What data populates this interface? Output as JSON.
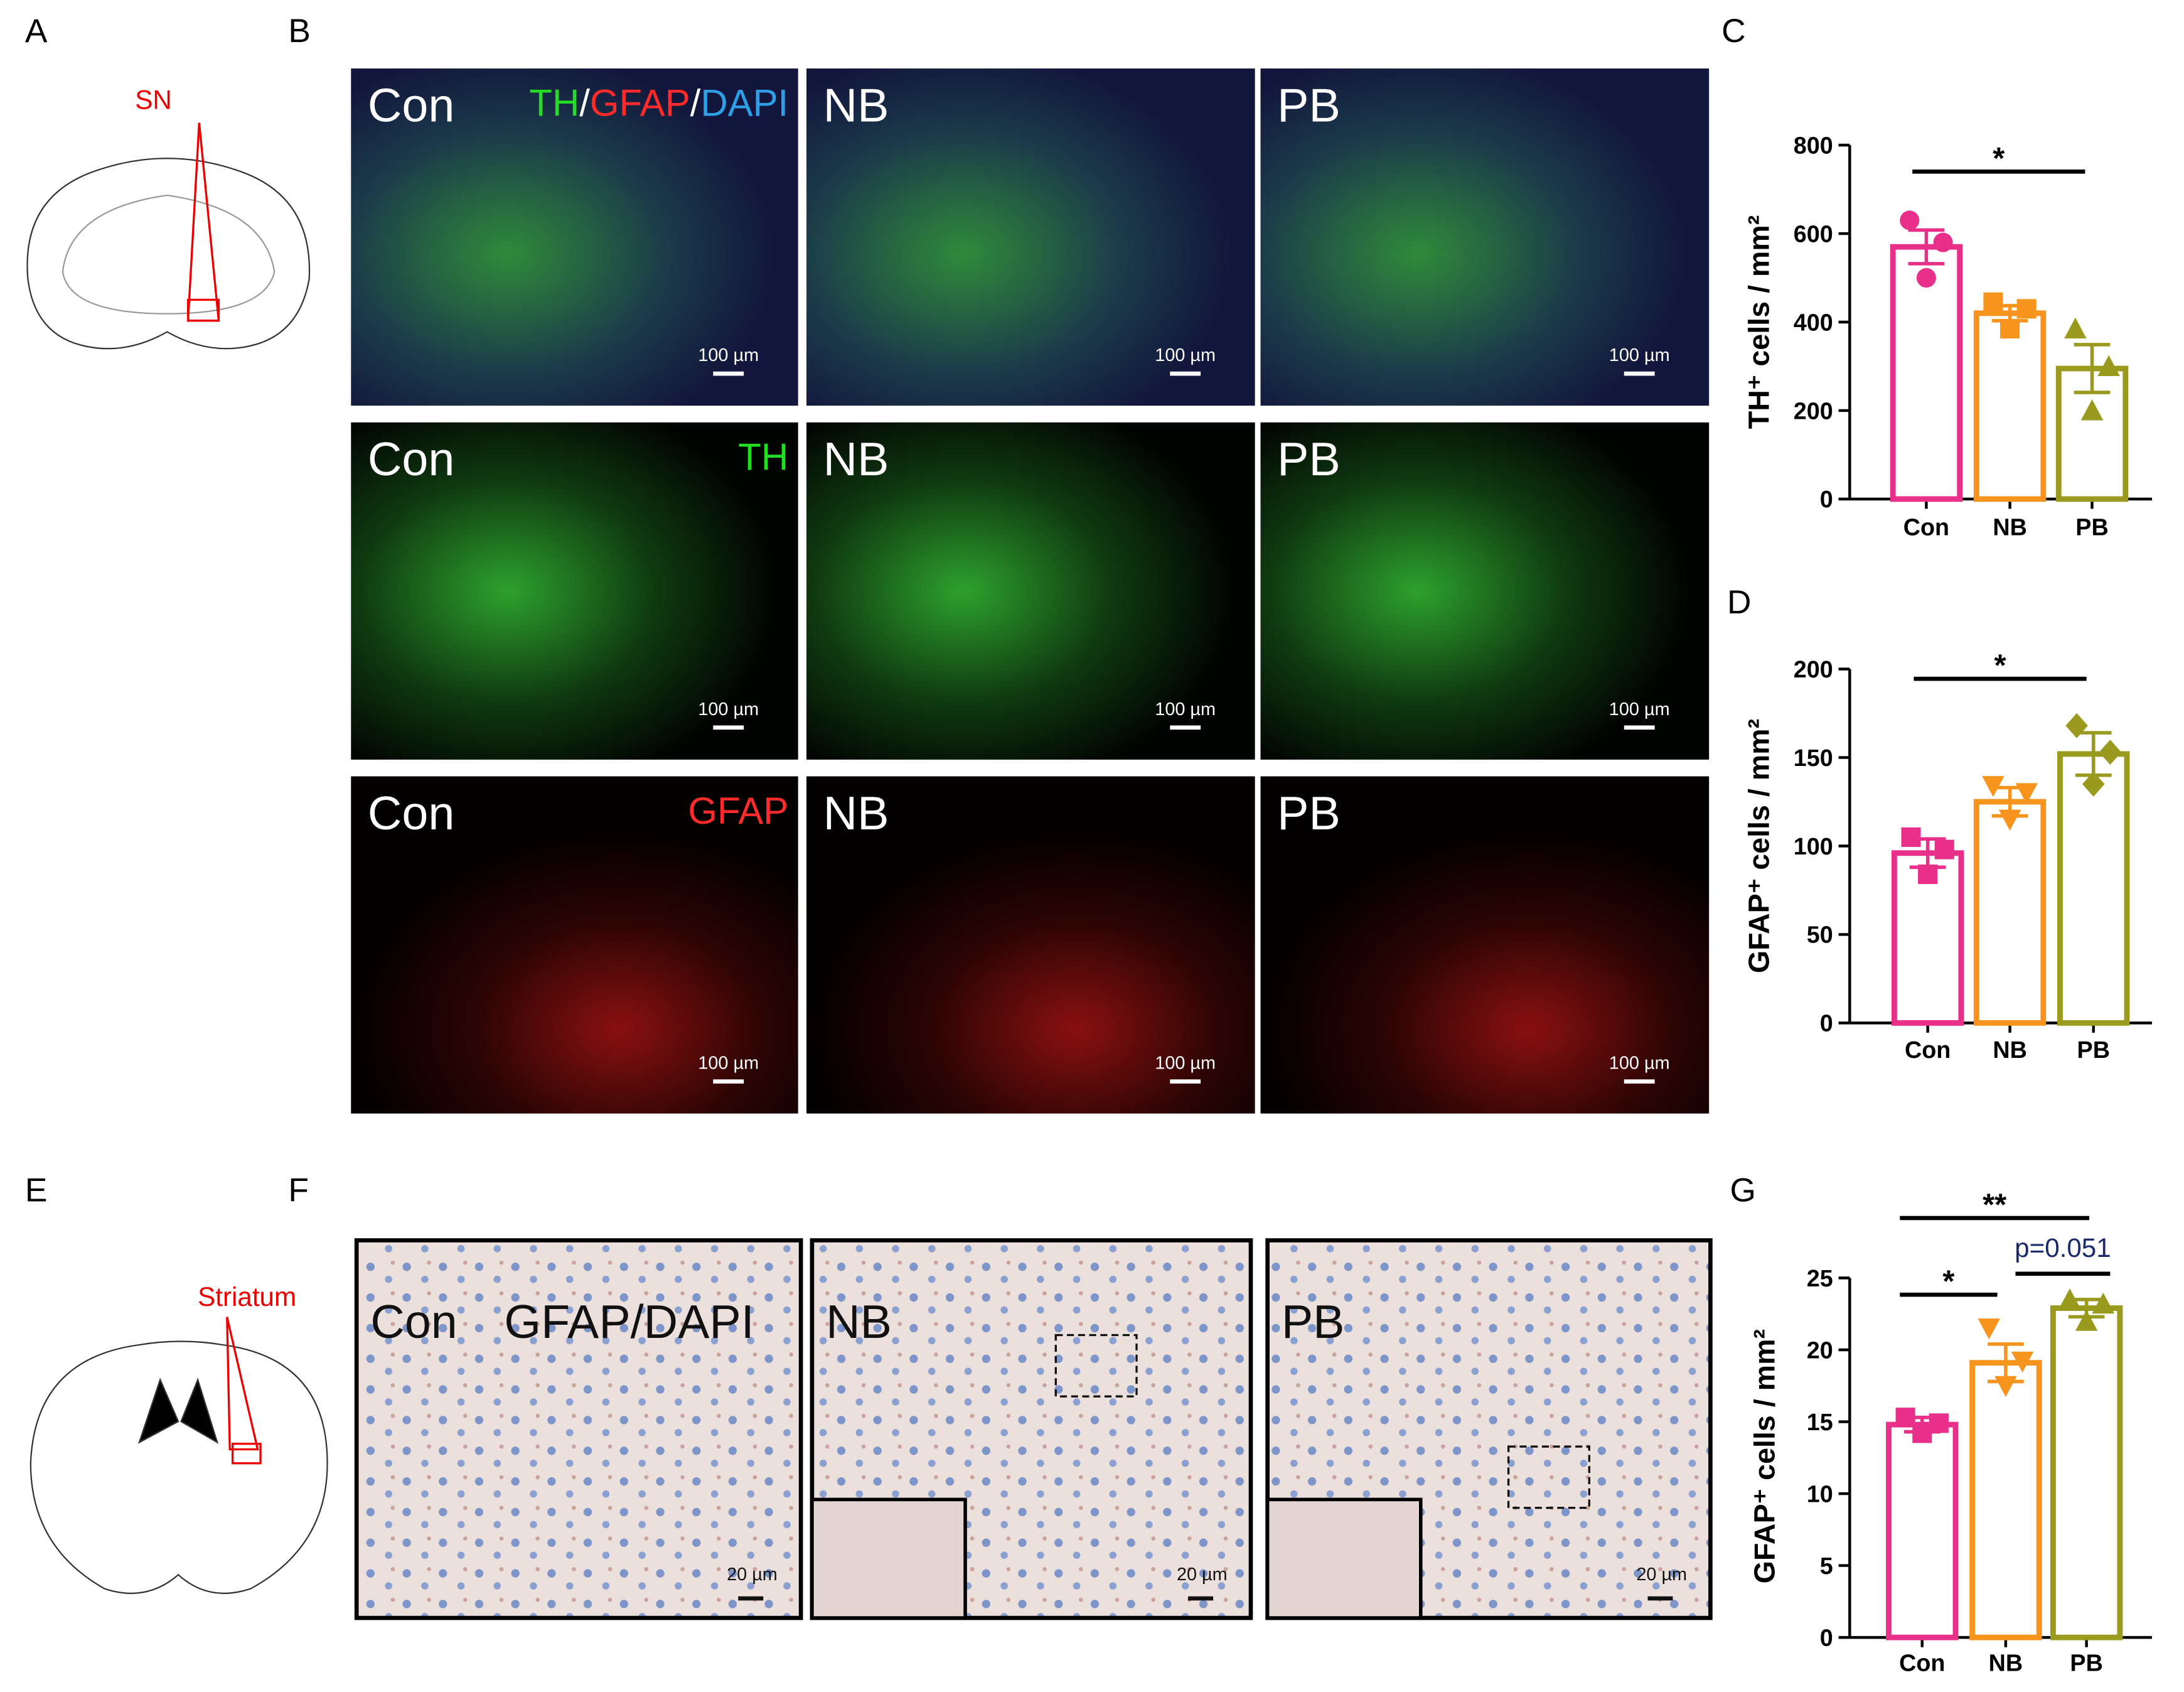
{
  "panel_labels": [
    "A",
    "B",
    "C",
    "D",
    "E",
    "F",
    "G"
  ],
  "schematic_A": {
    "region": "SN"
  },
  "schematic_E": {
    "region": "Striatum"
  },
  "panel_B": {
    "rows": [
      {
        "stain": [
          "TH",
          "/",
          "GFAP",
          "/",
          "DAPI"
        ],
        "stain_colors": [
          "#22dd22",
          "#ffffff",
          "#ff2a2a",
          "#ffffff",
          "#2c9fe6"
        ],
        "labels": [
          "Con",
          "NB",
          "PB"
        ],
        "scale_bars": [
          "100 µm",
          "100 µm",
          "100 µm"
        ]
      },
      {
        "stain": [
          "TH"
        ],
        "stain_colors": [
          "#22dd22"
        ],
        "labels": [
          "Con",
          "NB",
          "PB"
        ],
        "scale_bars": [
          "100 µm",
          "100 µm",
          "100 µm"
        ]
      },
      {
        "stain": [
          "GFAP"
        ],
        "stain_colors": [
          "#ff2a2a"
        ],
        "labels": [
          "Con",
          "NB",
          "PB"
        ],
        "scale_bars": [
          "100 µm",
          "100 µm",
          "100 µm"
        ]
      }
    ]
  },
  "panel_F": {
    "stain": "GFAP/DAPI",
    "labels": [
      "Con",
      "NB",
      "PB"
    ],
    "scale_bars": [
      "20 µm",
      "20 µm",
      "20 µm"
    ]
  },
  "chart_data": [
    {
      "type": "bar",
      "y_label": "TH⁺ cells / mm²",
      "categories": [
        "Con",
        "NB",
        "PB"
      ],
      "values": [
        570,
        420,
        295
      ],
      "errors": [
        38,
        17,
        54
      ],
      "points": [
        [
          630,
          580,
          500
        ],
        [
          445,
          430,
          385
        ],
        [
          385,
          300,
          200
        ]
      ],
      "markers": [
        "circle",
        "square",
        "triangle-up"
      ],
      "colors": [
        "#e8308a",
        "#f7941d",
        "#9a9a1e"
      ],
      "ylim": [
        0,
        800
      ],
      "yticks": [
        0,
        200,
        400,
        600,
        800
      ],
      "significance": [
        {
          "from": 0,
          "to": 2,
          "label": "*"
        }
      ]
    },
    {
      "type": "bar",
      "y_label": "GFAP⁺ cells / mm²",
      "categories": [
        "Con",
        "NB",
        "PB"
      ],
      "values": [
        96,
        125,
        152
      ],
      "errors": [
        8,
        8,
        12
      ],
      "points": [
        [
          105,
          98,
          84
        ],
        [
          134,
          130,
          115
        ],
        [
          168,
          153,
          135
        ]
      ],
      "markers": [
        "square",
        "triangle-down",
        "diamond"
      ],
      "colors": [
        "#e8308a",
        "#f7941d",
        "#9a9a1e"
      ],
      "ylim": [
        0,
        200
      ],
      "yticks": [
        0,
        50,
        100,
        150,
        200
      ],
      "significance": [
        {
          "from": 0,
          "to": 2,
          "label": "*"
        }
      ]
    },
    {
      "type": "bar",
      "y_label": "GFAP⁺ cells / mm²",
      "categories": [
        "Con",
        "NB",
        "PB"
      ],
      "values": [
        14.8,
        19.1,
        22.9
      ],
      "errors": [
        0.5,
        1.3,
        0.6
      ],
      "points": [
        [
          15.3,
          14.9,
          14.2
        ],
        [
          21.5,
          19.2,
          17.5
        ],
        [
          23.5,
          23.2,
          22.0
        ]
      ],
      "markers": [
        "square",
        "triangle-down",
        "triangle-up"
      ],
      "colors": [
        "#e8308a",
        "#f7941d",
        "#9a9a1e"
      ],
      "ylim": [
        0,
        25
      ],
      "yticks": [
        0,
        5,
        10,
        15,
        20,
        25
      ],
      "significance": [
        {
          "from": 0,
          "to": 2,
          "label": "**"
        },
        {
          "from": 0,
          "to": 1,
          "label": "*"
        },
        {
          "from": 1,
          "to": 2,
          "label": "p=0.051"
        }
      ]
    }
  ]
}
